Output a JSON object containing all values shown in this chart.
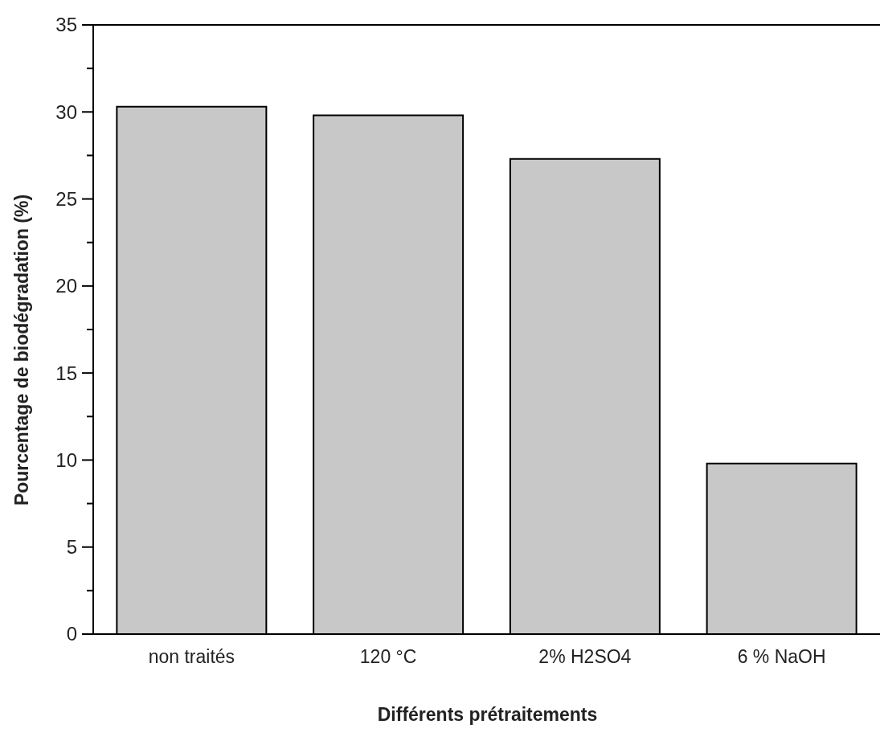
{
  "chart_data": {
    "type": "bar",
    "xlabel": "Différents prétraitements",
    "ylabel": "Pourcentage de biodégradation (%)",
    "categories": [
      "non traités",
      "120 °C",
      "2% H2SO4",
      "6 % NaOH"
    ],
    "values": [
      30.3,
      29.8,
      27.3,
      9.8
    ],
    "color": "#c8c8c8",
    "ylim": [
      0,
      35
    ],
    "yticks": [
      0,
      {
        "value": 2.5,
        "label": null
      },
      5,
      {
        "value": 7.5,
        "label": null
      },
      10,
      {
        "value": 12.5,
        "label": null
      },
      15,
      {
        "value": 17.5,
        "label": null
      },
      20,
      {
        "value": 22.5,
        "label": null
      },
      25,
      {
        "value": 27.5,
        "label": null
      },
      30,
      {
        "value": 32.5,
        "label": null
      },
      35
    ]
  }
}
